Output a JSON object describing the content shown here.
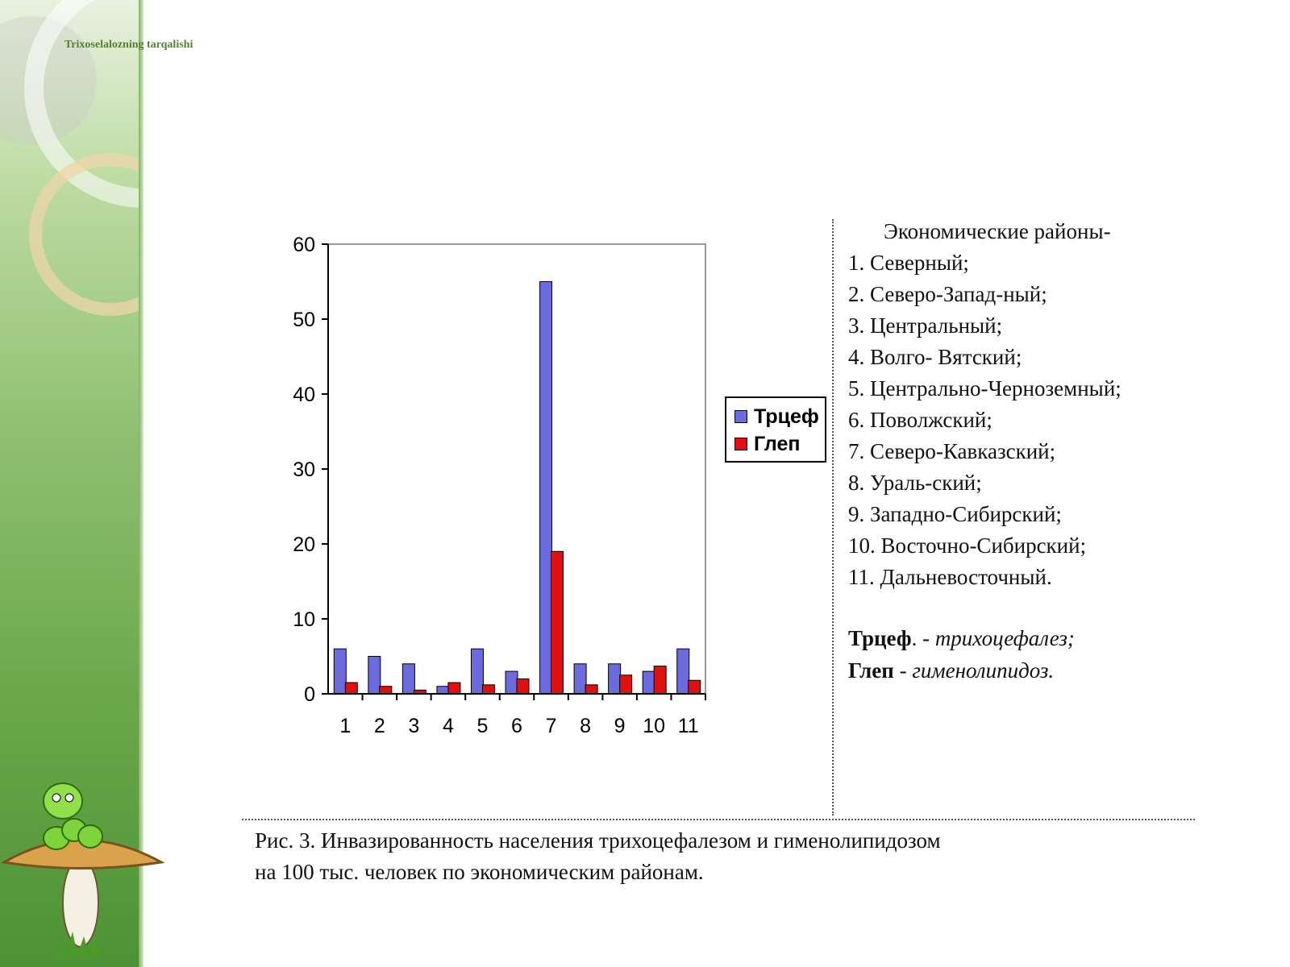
{
  "slide": {
    "title": "Trixoselalozning tarqalishi"
  },
  "chart_data": {
    "type": "bar",
    "categories": [
      "1",
      "2",
      "3",
      "4",
      "5",
      "6",
      "7",
      "8",
      "9",
      "10",
      "11"
    ],
    "series": [
      {
        "name": "Трцеф",
        "color": "#6b6bde",
        "values": [
          6,
          5,
          4,
          1,
          6,
          3,
          55,
          4,
          4,
          3,
          6
        ]
      },
      {
        "name": "Глеп",
        "color": "#e01010",
        "values": [
          1.5,
          1,
          0.5,
          1.5,
          1.2,
          2,
          19,
          1.2,
          2.5,
          3.7,
          1.8
        ]
      }
    ],
    "ylim": [
      0,
      60
    ],
    "yticks": [
      0,
      10,
      20,
      30,
      40,
      50,
      60
    ],
    "legend_position": "right",
    "grid": false
  },
  "regions": {
    "heading": "Экономические районы-",
    "items": [
      "1. Северный;",
      "2. Северо-Запад-ный;",
      "3. Центральный;",
      "4. Волго- Вятский;",
      "5. Центрально-Черноземный;",
      "6. Поволжский;",
      "7. Северо-Кавказский;",
      "8. Ураль-ский;",
      "9. Западно-Сибирский;",
      "10. Восточно-Сибирский;",
      "11. Дальневосточный."
    ]
  },
  "abbreviations": [
    {
      "term": "Трцеф",
      "sep": ". - ",
      "definition": "трихоцефалез;"
    },
    {
      "term": "Глеп",
      "sep": " - ",
      "definition": "гименолипидоз."
    }
  ],
  "caption": {
    "line1": "Рис. 3. Инвазированность населения трихоцефалезом  и гименолипидозом",
    "line2": "на 100 тыс.  человек по экономическим районам."
  }
}
